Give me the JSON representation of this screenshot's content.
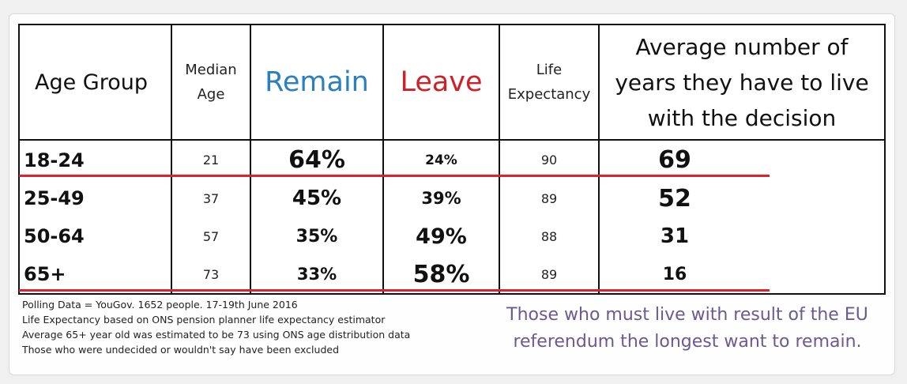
{
  "table": {
    "headers": {
      "age_group": "Age Group",
      "median_age": [
        "Median",
        "Age"
      ],
      "remain": "Remain",
      "leave": "Leave",
      "life_expectancy": [
        "Life",
        "Expectancy"
      ],
      "years": [
        "Average number of",
        "years they have to live",
        "with the decision"
      ]
    },
    "rows": [
      {
        "age_group": "18-24",
        "median_age": "21",
        "remain": "64%",
        "leave": "24%",
        "life_expectancy": "90",
        "years": "69"
      },
      {
        "age_group": "25-49",
        "median_age": "37",
        "remain": "45%",
        "leave": "39%",
        "life_expectancy": "89",
        "years": "52"
      },
      {
        "age_group": "50-64",
        "median_age": "57",
        "remain": "35%",
        "leave": "49%",
        "life_expectancy": "88",
        "years": "31"
      },
      {
        "age_group": "65+",
        "median_age": "73",
        "remain": "33%",
        "leave": "58%",
        "life_expectancy": "89",
        "years": "16"
      }
    ]
  },
  "notes": [
    "Polling Data = YouGov. 1652 people. 17-19th June 2016",
    "Life Expectancy based on ONS pension planner life expectancy estimator",
    "Average 65+ year old was estimated to be 73 using ONS age distribution data",
    "Those who were undecided or wouldn't say have been excluded"
  ],
  "caption": [
    "Those who must live with result of the EU",
    "referendum the longest want to remain."
  ],
  "colors": {
    "remain": "#2a7fbd",
    "leave": "#cf2027",
    "underline": "#e0202a",
    "caption": "#6a5a92"
  }
}
